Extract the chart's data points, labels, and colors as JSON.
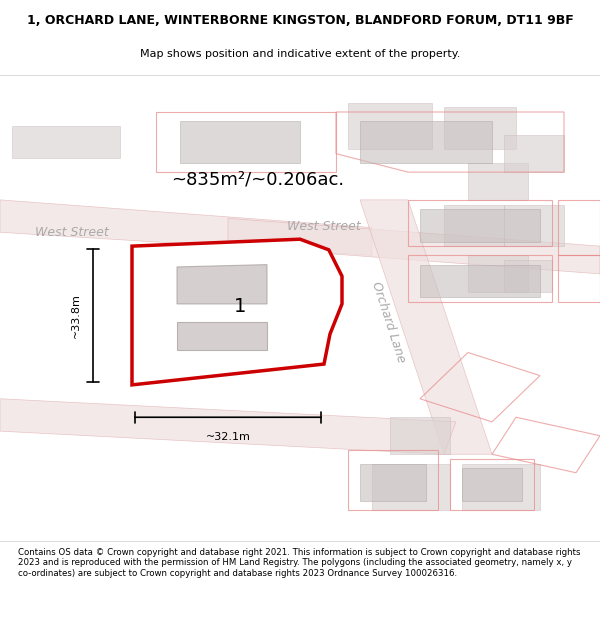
{
  "title": "1, ORCHARD LANE, WINTERBORNE KINGSTON, BLANDFORD FORUM, DT11 9BF",
  "subtitle": "Map shows position and indicative extent of the property.",
  "area_text": "~835m²/~0.206ac.",
  "label_1": "1",
  "dim_height": "~33.8m",
  "dim_width": "~32.1m",
  "street_label_left": "West Street",
  "street_label_right": "West Street",
  "street_label_orchard": "Orchard Lane",
  "footer": "Contains OS data © Crown copyright and database right 2021. This information is subject to Crown copyright and database rights 2023 and is reproduced with the permission of HM Land Registry. The polygons (including the associated geometry, namely x, y co-ordinates) are subject to Crown copyright and database rights 2023 Ordnance Survey 100026316.",
  "map_bg": "#ffffff",
  "plot_edge_color": "#cc0000",
  "road_fill": "#f0e0e0",
  "road_edge": "#e0b0b0",
  "building_fill": "#d8d0d0",
  "building_edge": "#c8b8b8",
  "pink_edge": "#e88888",
  "inner_fill": "#c8c0c0",
  "inner_edge": "#a8a0a0"
}
